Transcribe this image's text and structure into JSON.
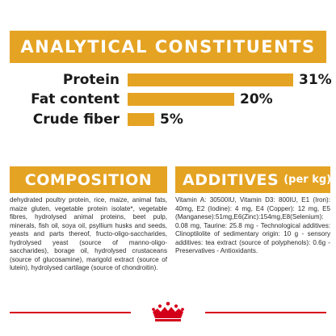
{
  "analytics": {
    "title": "ANALYTICAL CONSTITUENTS",
    "rows": [
      {
        "label": "Protein",
        "value": "31%",
        "fraction": 0.31
      },
      {
        "label": "Fat content",
        "value": "20%",
        "fraction": 0.2
      },
      {
        "label": "Crude fiber",
        "value": "5%",
        "fraction": 0.05
      }
    ]
  },
  "composition": {
    "title": "COMPOSITION",
    "text": "dehydrated poultry protein, rice, maize, animal fats, maize gluten, vegetable protein isolate*, vegetable fibres, hydrolysed animal proteins, beet pulp, minerals, fish oil, soya oil, psyllium husks and seeds, yeasts and parts thereof, fructo-oligo-saccharides, hydrolysed yeast (source of manno-oligo-saccharides), borage oil, hydrolysed crustaceans (source of glucosamine), marigold extract (source of lutein), hydrolysed cartilage (source of chondroitin)."
  },
  "additives": {
    "title": "ADDITIVES",
    "unit": "(per kg)",
    "text": "Vitamin A: 30500IU, Vitamin D3: 800IU, E1 (Iron): 40mg, E2 (Iodine): 4 mg, E4 (Copper): 12 mg, E5 (Manganese):51mg,E6(Zinc):154mg,E8(Selenium): 0.08 mg, Taurine: 25.8 mg - Technological additives: Clinoptilolite of sedimentary origin: 10 g - sensory additives: tea extract (source of polyphenols): 0.6g - Preservatives - Antioxidants."
  },
  "colors": {
    "accent": "#e5a323",
    "brand_red": "#d4001a"
  },
  "footer": {
    "logo_icon": "royal-canin-crown-icon"
  }
}
